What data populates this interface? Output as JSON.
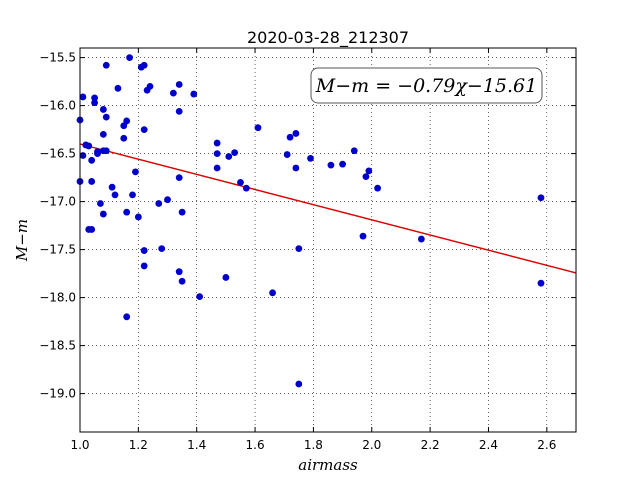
{
  "chart_data": {
    "type": "scatter",
    "title": "2020-03-28_212307",
    "xlabel": "airmass",
    "ylabel": "M−m",
    "xlim": [
      1.0,
      2.7
    ],
    "ylim": [
      -19.4,
      -15.4
    ],
    "y_inverted": true,
    "grid": true,
    "x_ticks": [
      1.0,
      1.2,
      1.4,
      1.6,
      1.8,
      2.0,
      2.2,
      2.4,
      2.6
    ],
    "x_tick_labels": [
      "1.0",
      "1.2",
      "1.4",
      "1.6",
      "1.8",
      "2.0",
      "2.2",
      "2.4",
      "2.6"
    ],
    "y_ticks": [
      -15.5,
      -16.0,
      -16.5,
      -17.0,
      -17.5,
      -18.0,
      -18.5,
      -19.0
    ],
    "y_tick_labels": [
      "−15.5",
      "−16.0",
      "−16.5",
      "−17.0",
      "−17.5",
      "−18.0",
      "−18.5",
      "−19.0"
    ],
    "fit": {
      "slope": -0.79,
      "intercept": -15.61,
      "color": "#dd0000"
    },
    "annotation": "M−m = −0.79χ−15.61",
    "point_color": "#0000cc",
    "points": [
      [
        1.0,
        -16.15
      ],
      [
        1.01,
        -15.91
      ],
      [
        1.01,
        -16.52
      ],
      [
        1.0,
        -16.79
      ],
      [
        1.02,
        -16.41
      ],
      [
        1.03,
        -16.42
      ],
      [
        1.03,
        -17.29
      ],
      [
        1.04,
        -17.29
      ],
      [
        1.04,
        -16.57
      ],
      [
        1.04,
        -16.79
      ],
      [
        1.05,
        -15.92
      ],
      [
        1.05,
        -15.97
      ],
      [
        1.06,
        -16.5
      ],
      [
        1.06,
        -16.48
      ],
      [
        1.07,
        -17.02
      ],
      [
        1.08,
        -16.3
      ],
      [
        1.08,
        -16.04
      ],
      [
        1.08,
        -16.47
      ],
      [
        1.08,
        -17.13
      ],
      [
        1.09,
        -16.47
      ],
      [
        1.09,
        -15.58
      ],
      [
        1.09,
        -16.12
      ],
      [
        1.11,
        -16.85
      ],
      [
        1.12,
        -16.93
      ],
      [
        1.13,
        -15.82
      ],
      [
        1.15,
        -16.21
      ],
      [
        1.15,
        -16.34
      ],
      [
        1.16,
        -16.16
      ],
      [
        1.16,
        -17.11
      ],
      [
        1.17,
        -15.5
      ],
      [
        1.16,
        -18.2
      ],
      [
        1.18,
        -16.93
      ],
      [
        1.19,
        -16.69
      ],
      [
        1.2,
        -17.16
      ],
      [
        1.21,
        -15.6
      ],
      [
        1.22,
        -16.25
      ],
      [
        1.22,
        -15.58
      ],
      [
        1.23,
        -15.84
      ],
      [
        1.24,
        -15.8
      ],
      [
        1.22,
        -17.51
      ],
      [
        1.22,
        -17.67
      ],
      [
        1.27,
        -17.02
      ],
      [
        1.28,
        -17.49
      ],
      [
        1.3,
        -16.98
      ],
      [
        1.32,
        -15.87
      ],
      [
        1.34,
        -15.78
      ],
      [
        1.34,
        -16.06
      ],
      [
        1.34,
        -17.73
      ],
      [
        1.34,
        -16.75
      ],
      [
        1.35,
        -17.83
      ],
      [
        1.35,
        -17.11
      ],
      [
        1.39,
        -15.88
      ],
      [
        1.41,
        -17.99
      ],
      [
        1.47,
        -16.39
      ],
      [
        1.47,
        -16.5
      ],
      [
        1.47,
        -16.65
      ],
      [
        1.5,
        -17.79
      ],
      [
        1.51,
        -16.53
      ],
      [
        1.53,
        -16.49
      ],
      [
        1.55,
        -16.8
      ],
      [
        1.57,
        -16.86
      ],
      [
        1.61,
        -16.23
      ],
      [
        1.66,
        -17.95
      ],
      [
        1.71,
        -16.51
      ],
      [
        1.72,
        -16.33
      ],
      [
        1.74,
        -16.29
      ],
      [
        1.74,
        -16.65
      ],
      [
        1.75,
        -17.49
      ],
      [
        1.75,
        -18.9
      ],
      [
        1.79,
        -16.55
      ],
      [
        1.86,
        -16.62
      ],
      [
        1.9,
        -16.61
      ],
      [
        1.94,
        -16.47
      ],
      [
        1.97,
        -17.36
      ],
      [
        1.98,
        -16.74
      ],
      [
        1.99,
        -16.68
      ],
      [
        2.02,
        -16.86
      ],
      [
        2.17,
        -17.39
      ],
      [
        2.58,
        -16.96
      ],
      [
        2.58,
        -17.85
      ]
    ]
  }
}
